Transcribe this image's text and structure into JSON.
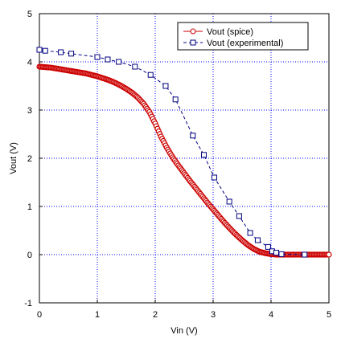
{
  "chart_data": {
    "type": "scatter",
    "title": "",
    "xlabel": "Vin (V)",
    "ylabel": "Vout (V)",
    "xlim": [
      0,
      5
    ],
    "ylim": [
      -1,
      5
    ],
    "x_ticks": [
      "0",
      "1",
      "2",
      "3",
      "4",
      "5"
    ],
    "y_ticks": [
      "-1",
      "0",
      "1",
      "2",
      "3",
      "4",
      "5"
    ],
    "grid": true,
    "legend_position": "top-right",
    "series": [
      {
        "name": "Vout (spice)",
        "color": "#cc0000",
        "marker": "circle",
        "line": "solid",
        "x": [
          0,
          0.1,
          0.2,
          0.3,
          0.4,
          0.5,
          0.6,
          0.7,
          0.8,
          0.9,
          1.0,
          1.1,
          1.2,
          1.3,
          1.4,
          1.5,
          1.6,
          1.7,
          1.8,
          1.9,
          2.0,
          2.1,
          2.2,
          2.3,
          2.4,
          2.5,
          2.6,
          2.7,
          2.8,
          2.9,
          3.0,
          3.1,
          3.2,
          3.3,
          3.4,
          3.5,
          3.6,
          3.7,
          3.8,
          3.9,
          4.0,
          4.1,
          4.2,
          4.3,
          4.4,
          4.5,
          4.6,
          4.7,
          4.8,
          4.9,
          5.0
        ],
        "y": [
          3.9,
          3.89,
          3.88,
          3.86,
          3.84,
          3.82,
          3.8,
          3.78,
          3.76,
          3.73,
          3.7,
          3.66,
          3.62,
          3.57,
          3.51,
          3.44,
          3.36,
          3.26,
          3.13,
          2.96,
          2.72,
          2.45,
          2.22,
          2.02,
          1.85,
          1.69,
          1.53,
          1.38,
          1.23,
          1.08,
          0.94,
          0.8,
          0.66,
          0.53,
          0.41,
          0.3,
          0.2,
          0.12,
          0.06,
          0.03,
          0.01,
          0.0,
          0.0,
          0.0,
          0.0,
          0.0,
          0.0,
          0.0,
          0.0,
          0.0,
          0.0
        ]
      },
      {
        "name": "Vout (experimental)",
        "color": "#000080",
        "marker": "square",
        "line": "dashed",
        "x": [
          0.0,
          0.1,
          0.37,
          0.55,
          1.0,
          1.18,
          1.37,
          1.65,
          1.92,
          2.18,
          2.35,
          2.65,
          2.84,
          3.02,
          3.28,
          3.45,
          3.64,
          3.77,
          3.95,
          4.02,
          4.09,
          4.18,
          4.58
        ],
        "y": [
          4.25,
          4.23,
          4.2,
          4.17,
          4.1,
          4.05,
          4.0,
          3.9,
          3.73,
          3.5,
          3.22,
          2.47,
          2.07,
          1.6,
          1.1,
          0.8,
          0.45,
          0.3,
          0.16,
          0.07,
          0.04,
          0.01,
          0.0
        ]
      }
    ]
  }
}
